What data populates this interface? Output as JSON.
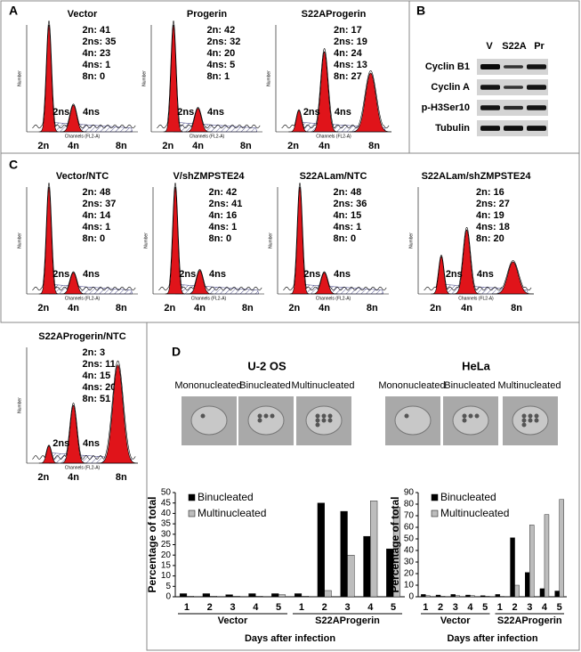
{
  "panels": {
    "A": {
      "label": "A",
      "histograms": [
        {
          "title": "Vector",
          "stats": [
            "2n: 41",
            "2ns: 35",
            "4n: 23",
            "4ns: 1",
            "8n: 0"
          ],
          "y_label": "Number",
          "x_label": "Channels (FL2-A)",
          "peak_labels": [
            "2ns",
            "4ns"
          ],
          "axis_labels": [
            "2n",
            "4n",
            "8n"
          ]
        },
        {
          "title": "Progerin",
          "stats": [
            "2n: 42",
            "2ns: 32",
            "4n: 20",
            "4ns: 5",
            "8n: 1"
          ],
          "y_label": "Number",
          "x_label": "Channels (FL2-A)",
          "peak_labels": [
            "2ns",
            "4ns"
          ],
          "axis_labels": [
            "2n",
            "4n",
            "8n"
          ]
        },
        {
          "title": "S22AProgerin",
          "stats": [
            "2n: 17",
            "2ns: 19",
            "4n: 24",
            "4ns: 13",
            "8n: 27"
          ],
          "y_label": "Number",
          "x_label": "Channels (FL2-A)",
          "peak_labels": [
            "2ns",
            "4ns"
          ],
          "axis_labels": [
            "2n",
            "4n",
            "8n"
          ]
        }
      ]
    },
    "B": {
      "label": "B",
      "lanes": [
        "V",
        "S22A",
        "Pr"
      ],
      "rows": [
        "Cyclin B1",
        "Cyclin A",
        "p-H3Ser10",
        "Tubulin"
      ]
    },
    "C": {
      "label": "C",
      "histograms": [
        {
          "title": "Vector/NTC",
          "stats": [
            "2n: 48",
            "2ns: 37",
            "4n: 14",
            "4ns: 1",
            "8n: 0"
          ],
          "y_label": "Number",
          "x_label": "Channels (FL2-A)",
          "peak_labels": [
            "2ns",
            "4ns"
          ],
          "axis_labels": [
            "2n",
            "4n",
            "8n"
          ]
        },
        {
          "title": "V/shZMPSTE24",
          "stats": [
            "2n: 42",
            "2ns: 41",
            "4n: 16",
            "4ns: 1",
            "8n: 0"
          ],
          "y_label": "Number",
          "x_label": "Channels (FL2-A)",
          "peak_labels": [
            "2ns",
            "4ns"
          ],
          "axis_labels": [
            "2n",
            "4n",
            "8n"
          ]
        },
        {
          "title": "S22ALam/NTC",
          "stats": [
            "2n: 48",
            "2ns: 36",
            "4n: 15",
            "4ns: 1",
            "8n: 0"
          ],
          "y_label": "Number",
          "x_label": "Channels (FL2-A)",
          "peak_labels": [
            "2ns",
            "4ns"
          ],
          "axis_labels": [
            "2n",
            "4n",
            "8n"
          ]
        },
        {
          "title": "S22ALam/shZMPSTE24",
          "stats": [
            "2n: 16",
            "2ns: 27",
            "4n: 19",
            "4ns: 18",
            "8n: 20"
          ],
          "y_label": "Number",
          "x_label": "Channels (FL2-A)",
          "peak_labels": [
            "2ns",
            "4ns"
          ],
          "axis_labels": [
            "2n",
            "4n",
            "8n"
          ]
        },
        {
          "title": "S22AProgerin/NTC",
          "stats": [
            "2n: 3",
            "2ns: 11",
            "4n: 15",
            "4ns: 20",
            "8n: 51"
          ],
          "y_label": "Number",
          "x_label": "Channels (FL2-A)",
          "peak_labels": [
            "2ns",
            "4ns"
          ],
          "axis_labels": [
            "2n",
            "4n",
            "8n"
          ]
        }
      ]
    },
    "D": {
      "label": "D",
      "cell_lines": [
        {
          "name": "U-2 OS",
          "images": [
            "Mononucleated",
            "Binucleated",
            "Multinucleated"
          ]
        },
        {
          "name": "HeLa",
          "images": [
            "Mononucleated",
            "Binucleated",
            "Multinucleated"
          ]
        }
      ]
    }
  },
  "chart_data": [
    {
      "type": "bar",
      "categories": [
        "1",
        "2",
        "3",
        "4",
        "5",
        "1",
        "2",
        "3",
        "4",
        "5"
      ],
      "groups": [
        "Vector",
        "S22AProgerin"
      ],
      "series": [
        {
          "name": "Binucleated",
          "color": "#000000",
          "values": [
            1.5,
            1.5,
            1,
            1.5,
            1.5,
            1.5,
            45,
            41,
            29,
            23
          ]
        },
        {
          "name": "Multinucleated",
          "color": "#bdbdbd",
          "values": [
            0.3,
            0.3,
            0.3,
            0.3,
            1,
            0.3,
            3,
            20,
            46,
            43
          ]
        }
      ],
      "y_label": "Percentage of total",
      "x_label": "Days after infection",
      "ylim": [
        0,
        50
      ],
      "yticks": [
        0,
        5,
        10,
        15,
        20,
        25,
        30,
        35,
        40,
        45,
        50
      ]
    },
    {
      "type": "bar",
      "categories": [
        "1",
        "2",
        "3",
        "4",
        "5",
        "1",
        "2",
        "3",
        "4",
        "5"
      ],
      "groups": [
        "Vector",
        "S22AProgerin"
      ],
      "series": [
        {
          "name": "Binucleated",
          "color": "#000000",
          "values": [
            2,
            1.5,
            2,
            1.5,
            1,
            2,
            51,
            21,
            7,
            5
          ]
        },
        {
          "name": "Multinucleated",
          "color": "#bdbdbd",
          "values": [
            1,
            0.5,
            1,
            1,
            0.5,
            0.3,
            10,
            62,
            71,
            84
          ]
        }
      ],
      "y_label": "Percentage of total",
      "x_label": "Days after infection",
      "ylim": [
        0,
        90
      ],
      "yticks": [
        0,
        10,
        20,
        30,
        40,
        50,
        60,
        70,
        80,
        90
      ]
    }
  ]
}
